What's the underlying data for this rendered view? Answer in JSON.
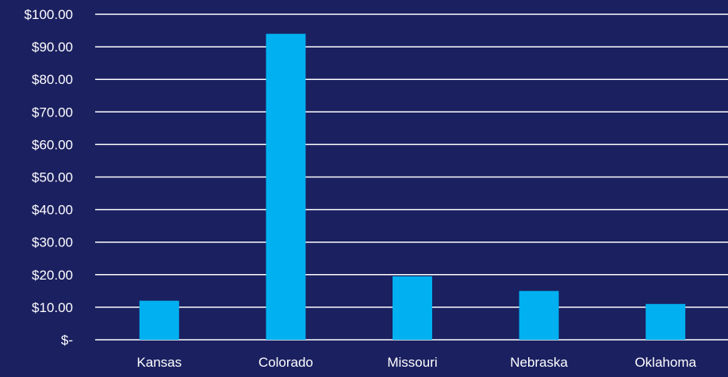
{
  "colors": {
    "background": "#1B2060",
    "bar": "#00B0F0",
    "gridline": "#FFFFFF",
    "text": "#FFFFFF"
  },
  "chart_data": {
    "type": "bar",
    "title": "",
    "xlabel": "",
    "ylabel": "",
    "categories": [
      "Kansas",
      "Colorado",
      "Missouri",
      "Nebraska",
      "Oklahoma"
    ],
    "values": [
      12,
      94,
      19.5,
      15,
      11
    ],
    "ylim": [
      0,
      100
    ],
    "yticks": [
      0,
      10,
      20,
      30,
      40,
      50,
      60,
      70,
      80,
      90,
      100
    ],
    "ytick_labels": [
      "$-",
      "$10.00",
      "$20.00",
      "$30.00",
      "$40.00",
      "$50.00",
      "$60.00",
      "$70.00",
      "$80.00",
      "$90.00",
      "$100.00"
    ],
    "grid": true,
    "legend": "none"
  }
}
